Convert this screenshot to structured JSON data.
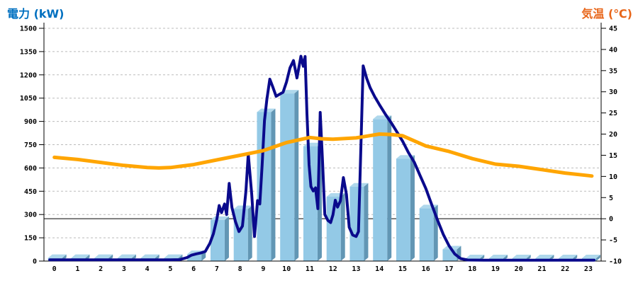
{
  "colors": {
    "left_title": "#0070C0",
    "right_title": "#E8661A",
    "bar_front": "#93C9E6",
    "bar_side": "#6296B4",
    "bar_top": "#AFD8EC",
    "power_line": "#0A0A8C",
    "temp_line": "#FFA500",
    "grid": "#BBBBBB",
    "axis": "#000000"
  },
  "chart_data": {
    "type": "combo bar+line, dual axis",
    "x_categories": [
      "0",
      "1",
      "2",
      "3",
      "4",
      "5",
      "6",
      "7",
      "8",
      "9",
      "10",
      "11",
      "12",
      "13",
      "14",
      "15",
      "16",
      "17",
      "18",
      "19",
      "20",
      "21",
      "22",
      "23"
    ],
    "left_axis": {
      "title": "電力 (kW)",
      "min": 0,
      "max": 1500,
      "step": 150,
      "tick_labels": [
        "0",
        "150",
        "300",
        "450",
        "600",
        "750",
        "900",
        "1050",
        "1200",
        "1350",
        "1500"
      ]
    },
    "right_axis": {
      "title": "気温 (℃)",
      "min": -10,
      "max": 45,
      "step": 5,
      "tick_labels": [
        "-10",
        "-5",
        "0",
        "5",
        "10",
        "15",
        "20",
        "25",
        "30",
        "35",
        "40",
        "45"
      ]
    },
    "grid": "dashed horizontal lines at every 150 kW; solid black line at 0 °C",
    "legend": "none",
    "series": [
      {
        "id": "bar_power",
        "type": "bar",
        "axis": "left",
        "unit": "kW",
        "values": [
          20,
          20,
          20,
          20,
          20,
          20,
          45,
          265,
          335,
          960,
          1080,
          740,
          415,
          480,
          915,
          660,
          340,
          75,
          18,
          18,
          18,
          18,
          18,
          18
        ]
      },
      {
        "id": "line_power",
        "type": "line",
        "axis": "left",
        "unit": "kW",
        "points": [
          [
            -0.2,
            8
          ],
          [
            1,
            8
          ],
          [
            2,
            8
          ],
          [
            3,
            8
          ],
          [
            4,
            8
          ],
          [
            5,
            8
          ],
          [
            5.4,
            9
          ],
          [
            5.7,
            22
          ],
          [
            5.9,
            38
          ],
          [
            6.1,
            46
          ],
          [
            6.3,
            52
          ],
          [
            6.5,
            62
          ],
          [
            6.7,
            115
          ],
          [
            6.85,
            175
          ],
          [
            7.0,
            270
          ],
          [
            7.1,
            358
          ],
          [
            7.2,
            312
          ],
          [
            7.33,
            368
          ],
          [
            7.42,
            300
          ],
          [
            7.53,
            500
          ],
          [
            7.65,
            345
          ],
          [
            7.8,
            255
          ],
          [
            7.95,
            190
          ],
          [
            8.1,
            225
          ],
          [
            8.25,
            450
          ],
          [
            8.35,
            690
          ],
          [
            8.5,
            430
          ],
          [
            8.62,
            158
          ],
          [
            8.75,
            390
          ],
          [
            8.85,
            368
          ],
          [
            8.95,
            620
          ],
          [
            9.05,
            905
          ],
          [
            9.15,
            1040
          ],
          [
            9.28,
            1172
          ],
          [
            9.4,
            1125
          ],
          [
            9.55,
            1062
          ],
          [
            9.7,
            1075
          ],
          [
            9.85,
            1088
          ],
          [
            10.0,
            1155
          ],
          [
            10.15,
            1245
          ],
          [
            10.3,
            1292
          ],
          [
            10.45,
            1180
          ],
          [
            10.62,
            1320
          ],
          [
            10.72,
            1255
          ],
          [
            10.8,
            1318
          ],
          [
            10.88,
            950
          ],
          [
            10.97,
            620
          ],
          [
            11.05,
            480
          ],
          [
            11.15,
            452
          ],
          [
            11.25,
            472
          ],
          [
            11.35,
            338
          ],
          [
            11.45,
            958
          ],
          [
            11.55,
            640
          ],
          [
            11.65,
            300
          ],
          [
            11.78,
            262
          ],
          [
            11.9,
            248
          ],
          [
            12.0,
            298
          ],
          [
            12.1,
            392
          ],
          [
            12.2,
            348
          ],
          [
            12.32,
            388
          ],
          [
            12.45,
            538
          ],
          [
            12.58,
            430
          ],
          [
            12.7,
            218
          ],
          [
            12.85,
            168
          ],
          [
            13.0,
            158
          ],
          [
            13.1,
            190
          ],
          [
            13.2,
            720
          ],
          [
            13.3,
            1258
          ],
          [
            13.45,
            1178
          ],
          [
            13.6,
            1118
          ],
          [
            13.8,
            1058
          ],
          [
            14.0,
            1008
          ],
          [
            14.25,
            948
          ],
          [
            14.5,
            893
          ],
          [
            14.75,
            833
          ],
          [
            15.0,
            772
          ],
          [
            15.25,
            700
          ],
          [
            15.5,
            638
          ],
          [
            15.75,
            552
          ],
          [
            16.0,
            468
          ],
          [
            16.25,
            365
          ],
          [
            16.5,
            265
          ],
          [
            16.75,
            172
          ],
          [
            17.0,
            98
          ],
          [
            17.25,
            45
          ],
          [
            17.5,
            16
          ],
          [
            17.8,
            7
          ],
          [
            18.5,
            6
          ],
          [
            19.5,
            6
          ],
          [
            20.5,
            6
          ],
          [
            21.5,
            6
          ],
          [
            22.5,
            6
          ],
          [
            23.25,
            6
          ]
        ]
      },
      {
        "id": "line_temperature",
        "type": "line",
        "axis": "right",
        "unit": "℃",
        "points": [
          [
            0,
            14.5
          ],
          [
            1,
            14.0
          ],
          [
            2,
            13.3
          ],
          [
            3,
            12.6
          ],
          [
            4,
            12.1
          ],
          [
            4.5,
            12.0
          ],
          [
            5,
            12.1
          ],
          [
            6,
            12.8
          ],
          [
            7,
            13.9
          ],
          [
            8,
            15.0
          ],
          [
            9,
            16.1
          ],
          [
            10,
            18.0
          ],
          [
            11,
            19.2
          ],
          [
            11.5,
            18.9
          ],
          [
            12,
            18.8
          ],
          [
            13,
            19.1
          ],
          [
            14,
            20.0
          ],
          [
            14.5,
            19.9
          ],
          [
            15,
            19.6
          ],
          [
            16,
            17.2
          ],
          [
            17,
            15.9
          ],
          [
            18,
            14.2
          ],
          [
            19,
            12.9
          ],
          [
            20,
            12.4
          ],
          [
            21,
            11.6
          ],
          [
            22,
            10.8
          ],
          [
            23,
            10.2
          ],
          [
            23.15,
            10.1
          ]
        ]
      }
    ]
  }
}
